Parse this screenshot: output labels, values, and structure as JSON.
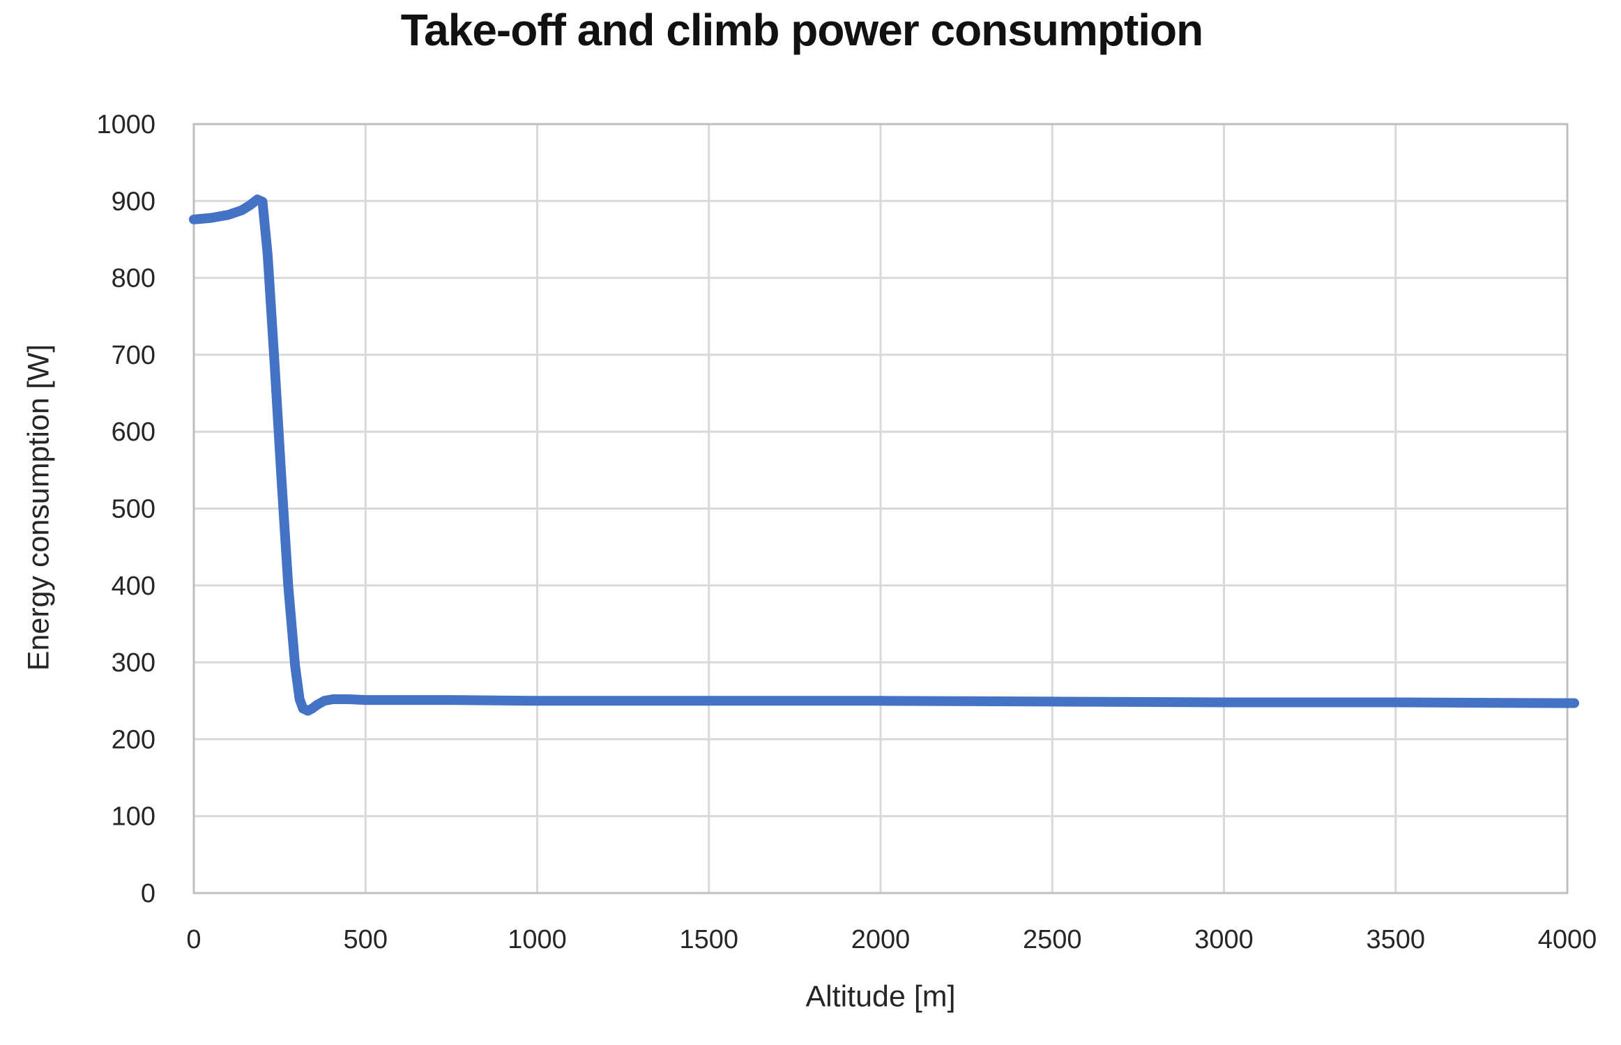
{
  "chart_data": {
    "type": "line",
    "title": "Take-off and climb power consumption",
    "xlabel": "Altitude [m]",
    "ylabel": "Energy consumption [W]",
    "xlim": [
      0,
      4000
    ],
    "ylim": [
      0,
      1000
    ],
    "x_ticks": [
      0,
      500,
      1000,
      1500,
      2000,
      2500,
      3000,
      3500,
      4000
    ],
    "y_ticks": [
      0,
      100,
      200,
      300,
      400,
      500,
      600,
      700,
      800,
      900,
      1000
    ],
    "grid": true,
    "legend": "none",
    "series": [
      {
        "color": "#4472C4",
        "points": [
          [
            0,
            876
          ],
          [
            50,
            878
          ],
          [
            100,
            882
          ],
          [
            140,
            888
          ],
          [
            165,
            895
          ],
          [
            185,
            902
          ],
          [
            200,
            899
          ],
          [
            215,
            830
          ],
          [
            235,
            690
          ],
          [
            255,
            540
          ],
          [
            275,
            400
          ],
          [
            295,
            295
          ],
          [
            308,
            252
          ],
          [
            318,
            240
          ],
          [
            332,
            237
          ],
          [
            345,
            240
          ],
          [
            360,
            245
          ],
          [
            380,
            250
          ],
          [
            405,
            252
          ],
          [
            450,
            252
          ],
          [
            500,
            251
          ],
          [
            750,
            251
          ],
          [
            1000,
            250
          ],
          [
            1500,
            250
          ],
          [
            2000,
            250
          ],
          [
            2500,
            249
          ],
          [
            3000,
            248
          ],
          [
            3500,
            248
          ],
          [
            4000,
            247
          ]
        ]
      }
    ]
  },
  "style": {
    "line_color": "#4472C4",
    "grid_color": "#D9D9D9",
    "frame_color": "#BFBFBF",
    "tick_text_color": "#262626",
    "title_color": "#111111"
  }
}
